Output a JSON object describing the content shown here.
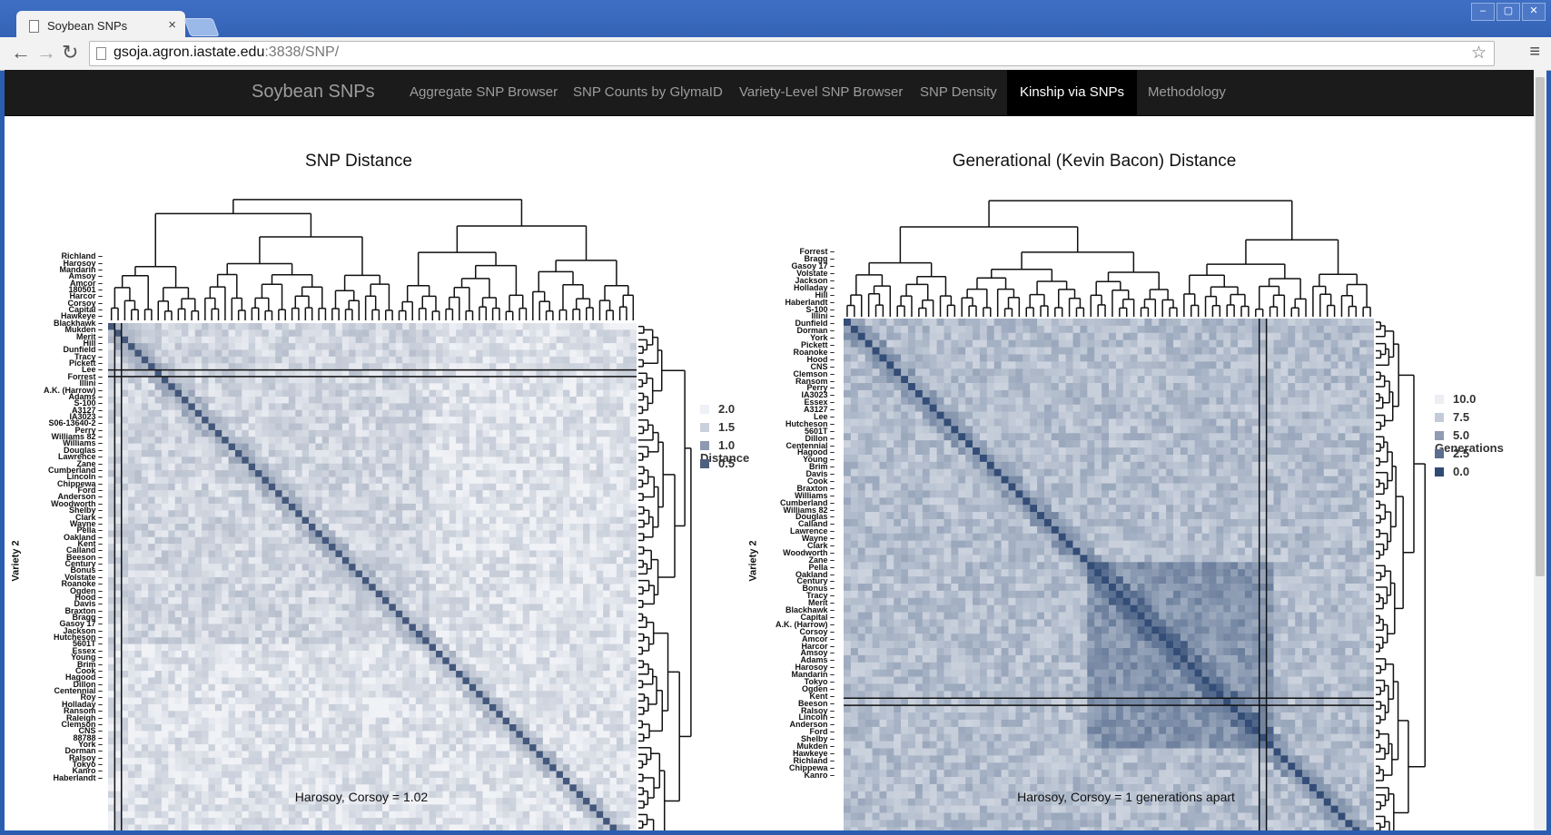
{
  "browser": {
    "tab_title": "Soybean SNPs",
    "tab_close": "×",
    "url_host": "gsoja.agron.iastate.edu",
    "url_rest": ":3838/SNP/",
    "back": "←",
    "forward": "→",
    "reload": "↻",
    "star": "☆",
    "menu": "≡",
    "win_min": "–",
    "win_max": "▢",
    "win_close": "✕"
  },
  "navbar": {
    "brand": "Soybean SNPs",
    "links": [
      {
        "label": "Aggregate SNP Browser",
        "active": false
      },
      {
        "label": "SNP Counts by GlymaID",
        "active": false
      },
      {
        "label": "Variety-Level SNP Browser",
        "active": false
      },
      {
        "label": "SNP Density",
        "active": false
      },
      {
        "label": "Kinship via SNPs",
        "active": true
      },
      {
        "label": "Methodology",
        "active": false
      }
    ]
  },
  "chart_data": [
    {
      "type": "heatmap",
      "title": "SNP Distance",
      "ylabel": "Variety 2",
      "rows": [
        "Richland",
        "Harosoy",
        "Mandarin",
        "Amsoy",
        "Amcor",
        "180501",
        "Harcor",
        "Corsoy",
        "Capital",
        "Hawkeye",
        "Blackhawk",
        "Mukden",
        "Merit",
        "Hill",
        "Dunfield",
        "Tracy",
        "Pickett",
        "Lee",
        "Forrest",
        "Illini",
        "A.K. (Harrow)",
        "Adams",
        "S-100",
        "A3127",
        "IA3023",
        "S06-13640-2",
        "Perry",
        "Williams 82",
        "Williams",
        "Douglas",
        "Lawrence",
        "Zane",
        "Cumberland",
        "Lincoln",
        "Chippewa",
        "Ford",
        "Anderson",
        "Woodworth",
        "Shelby",
        "Clark",
        "Wayne",
        "Pella",
        "Oakland",
        "Kent",
        "Calland",
        "Beeson",
        "Century",
        "Bonus",
        "Volstate",
        "Roanoke",
        "Ogden",
        "Hood",
        "Davis",
        "Braxton",
        "Bragg",
        "Gasoy 17",
        "Jackson",
        "Hutcheson",
        "5601T",
        "Essex",
        "Young",
        "Brim",
        "Cook",
        "Hagood",
        "Dillon",
        "Centennial",
        "Roy",
        "Holladay",
        "Ransom",
        "Raleigh",
        "Clemson",
        "CNS",
        "88788",
        "York",
        "Dorman",
        "Ralsoy",
        "Tokyo",
        "Kanro",
        "Haberlandt"
      ],
      "legend": {
        "title": "Distance",
        "values": [
          "2.0",
          "1.5",
          "1.0",
          "0.5"
        ],
        "colors": [
          "#eef1f6",
          "#c9d1de",
          "#8d9ab1",
          "#4e5f80"
        ]
      },
      "colorscale": {
        "low": 0.5,
        "high": 2.0,
        "low_color": "#3f5478",
        "high_color": "#f0f2f6"
      },
      "highlight": {
        "row": "Corsoy",
        "col": "Harosoy"
      },
      "caption": "Harosoy, Corsoy = 1.02"
    },
    {
      "type": "heatmap",
      "title": "Generational (Kevin Bacon) Distance",
      "ylabel": "Variety 2",
      "rows": [
        "Forrest",
        "Bragg",
        "Gasoy 17",
        "Volstate",
        "Jackson",
        "Holladay",
        "Hill",
        "Haberlandt",
        "S-100",
        "Illini",
        "Dunfield",
        "Dorman",
        "York",
        "Pickett",
        "Roanoke",
        "Hood",
        "CNS",
        "Clemson",
        "Ransom",
        "Perry",
        "IA3023",
        "Essex",
        "A3127",
        "Lee",
        "Hutcheson",
        "5601T",
        "Dillon",
        "Centennial",
        "Hagood",
        "Young",
        "Brim",
        "Davis",
        "Cook",
        "Braxton",
        "Williams",
        "Cumberland",
        "Williams 82",
        "Douglas",
        "Calland",
        "Lawrence",
        "Wayne",
        "Clark",
        "Woodworth",
        "Zane",
        "Pella",
        "Oakland",
        "Century",
        "Bonus",
        "Tracy",
        "Merit",
        "Blackhawk",
        "Capital",
        "A.K. (Harrow)",
        "Corsoy",
        "Amcor",
        "Harcor",
        "Amsoy",
        "Adams",
        "Harosoy",
        "Mandarin",
        "Tokyo",
        "Ogden",
        "Kent",
        "Beeson",
        "Ralsoy",
        "Lincoln",
        "Anderson",
        "Ford",
        "Shelby",
        "Mukden",
        "Hawkeye",
        "Richland",
        "Chippewa",
        "Kanro"
      ],
      "legend": {
        "title": "Generations",
        "values": [
          "10.0",
          "7.5",
          "5.0",
          "2.5",
          "0.0"
        ],
        "colors": [
          "#eceff4",
          "#c3cbda",
          "#8f9cb4",
          "#5c6d8e",
          "#2f4a73"
        ]
      },
      "colorscale": {
        "low": 0.0,
        "high": 10.0,
        "low_color": "#2f4a73",
        "high_color": "#eceff4"
      },
      "highlight": {
        "row": "Corsoy",
        "col": "Harosoy"
      },
      "caption": "Harosoy, Corsoy = 1 generations apart"
    }
  ]
}
